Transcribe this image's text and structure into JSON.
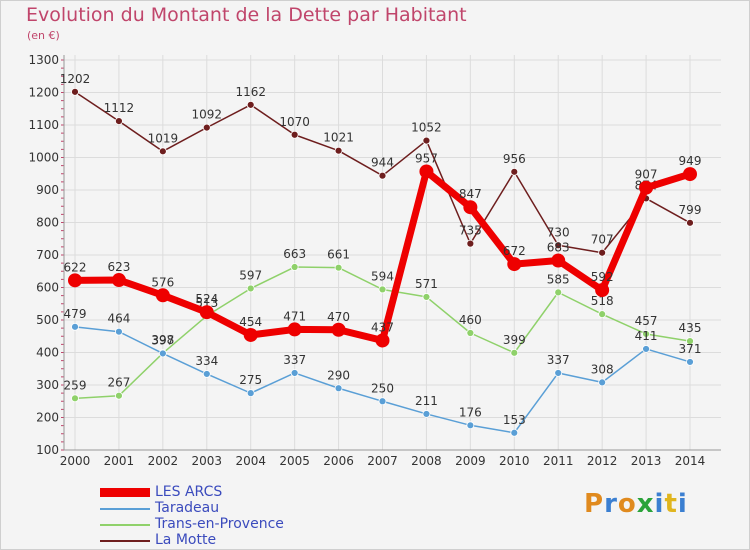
{
  "chart_data": {
    "type": "line",
    "title": "Evolution du Montant de la Dette par Habitant",
    "subtitle": "(en €)",
    "xlabel": "",
    "ylabel": "",
    "ylim": [
      100,
      1300
    ],
    "yticks": [
      100,
      200,
      300,
      400,
      500,
      600,
      700,
      800,
      900,
      1000,
      1100,
      1200,
      1300
    ],
    "x": [
      "2000",
      "2001",
      "2002",
      "2003",
      "2004",
      "2005",
      "2006",
      "2007",
      "2008",
      "2009",
      "2010",
      "2011",
      "2012",
      "2013",
      "2014"
    ],
    "grid": true,
    "legend_position": "bottom-left",
    "series": [
      {
        "name": "La Motte",
        "color": "#6e1e1e",
        "values": [
          1202,
          1112,
          1019,
          1092,
          1162,
          1070,
          1021,
          944,
          1052,
          735,
          956,
          730,
          707,
          874,
          799
        ],
        "labels": [
          "1202",
          "1112",
          "1019",
          "1092",
          "1162",
          "1070",
          "1021",
          "944",
          "1052",
          "735",
          "956",
          "730",
          "707",
          "874",
          "799"
        ]
      },
      {
        "name": "Trans-en-Provence",
        "color": "#8fd16a",
        "values": [
          259,
          267,
          398,
          513,
          597,
          663,
          661,
          594,
          571,
          460,
          399,
          585,
          518,
          457,
          435
        ],
        "labels": [
          "259",
          "267",
          "398",
          "513",
          "597",
          "663",
          "661",
          "594",
          "571",
          "460",
          "399",
          "585",
          "518",
          "457",
          "435"
        ]
      },
      {
        "name": "Taradeau",
        "color": "#5a9fd6",
        "values": [
          479,
          464,
          397,
          334,
          275,
          337,
          290,
          250,
          211,
          176,
          153,
          337,
          308,
          411,
          371
        ],
        "labels": [
          "479",
          "464",
          "397",
          "334",
          "275",
          "337",
          "290",
          "250",
          "211",
          "176",
          "153",
          "337",
          "308",
          "411",
          "371"
        ]
      },
      {
        "name": "LES ARCS",
        "color": "#ee0000",
        "values": [
          622,
          623,
          576,
          524,
          454,
          471,
          470,
          437,
          957,
          847,
          672,
          683,
          592,
          907,
          949
        ],
        "labels": [
          "622",
          "623",
          "576",
          "524",
          "454",
          "471",
          "470",
          "437",
          "957",
          "847",
          "672",
          "683",
          "592",
          "907",
          "949"
        ]
      }
    ],
    "legend": [
      {
        "name": "LES ARCS",
        "color": "#ee0000"
      },
      {
        "name": "Taradeau",
        "color": "#5a9fd6"
      },
      {
        "name": "Trans-en-Provence",
        "color": "#8fd16a"
      },
      {
        "name": "La Motte",
        "color": "#6e1e1e"
      }
    ]
  },
  "brand": {
    "letters": [
      "P",
      "r",
      "o",
      "x",
      "i",
      "t",
      "i"
    ],
    "colors": [
      "#e08a1e",
      "#3b7fd1",
      "#e08a1e",
      "#2aa33a",
      "#3b7fd1",
      "#e0b51e",
      "#3b7fd1"
    ]
  }
}
